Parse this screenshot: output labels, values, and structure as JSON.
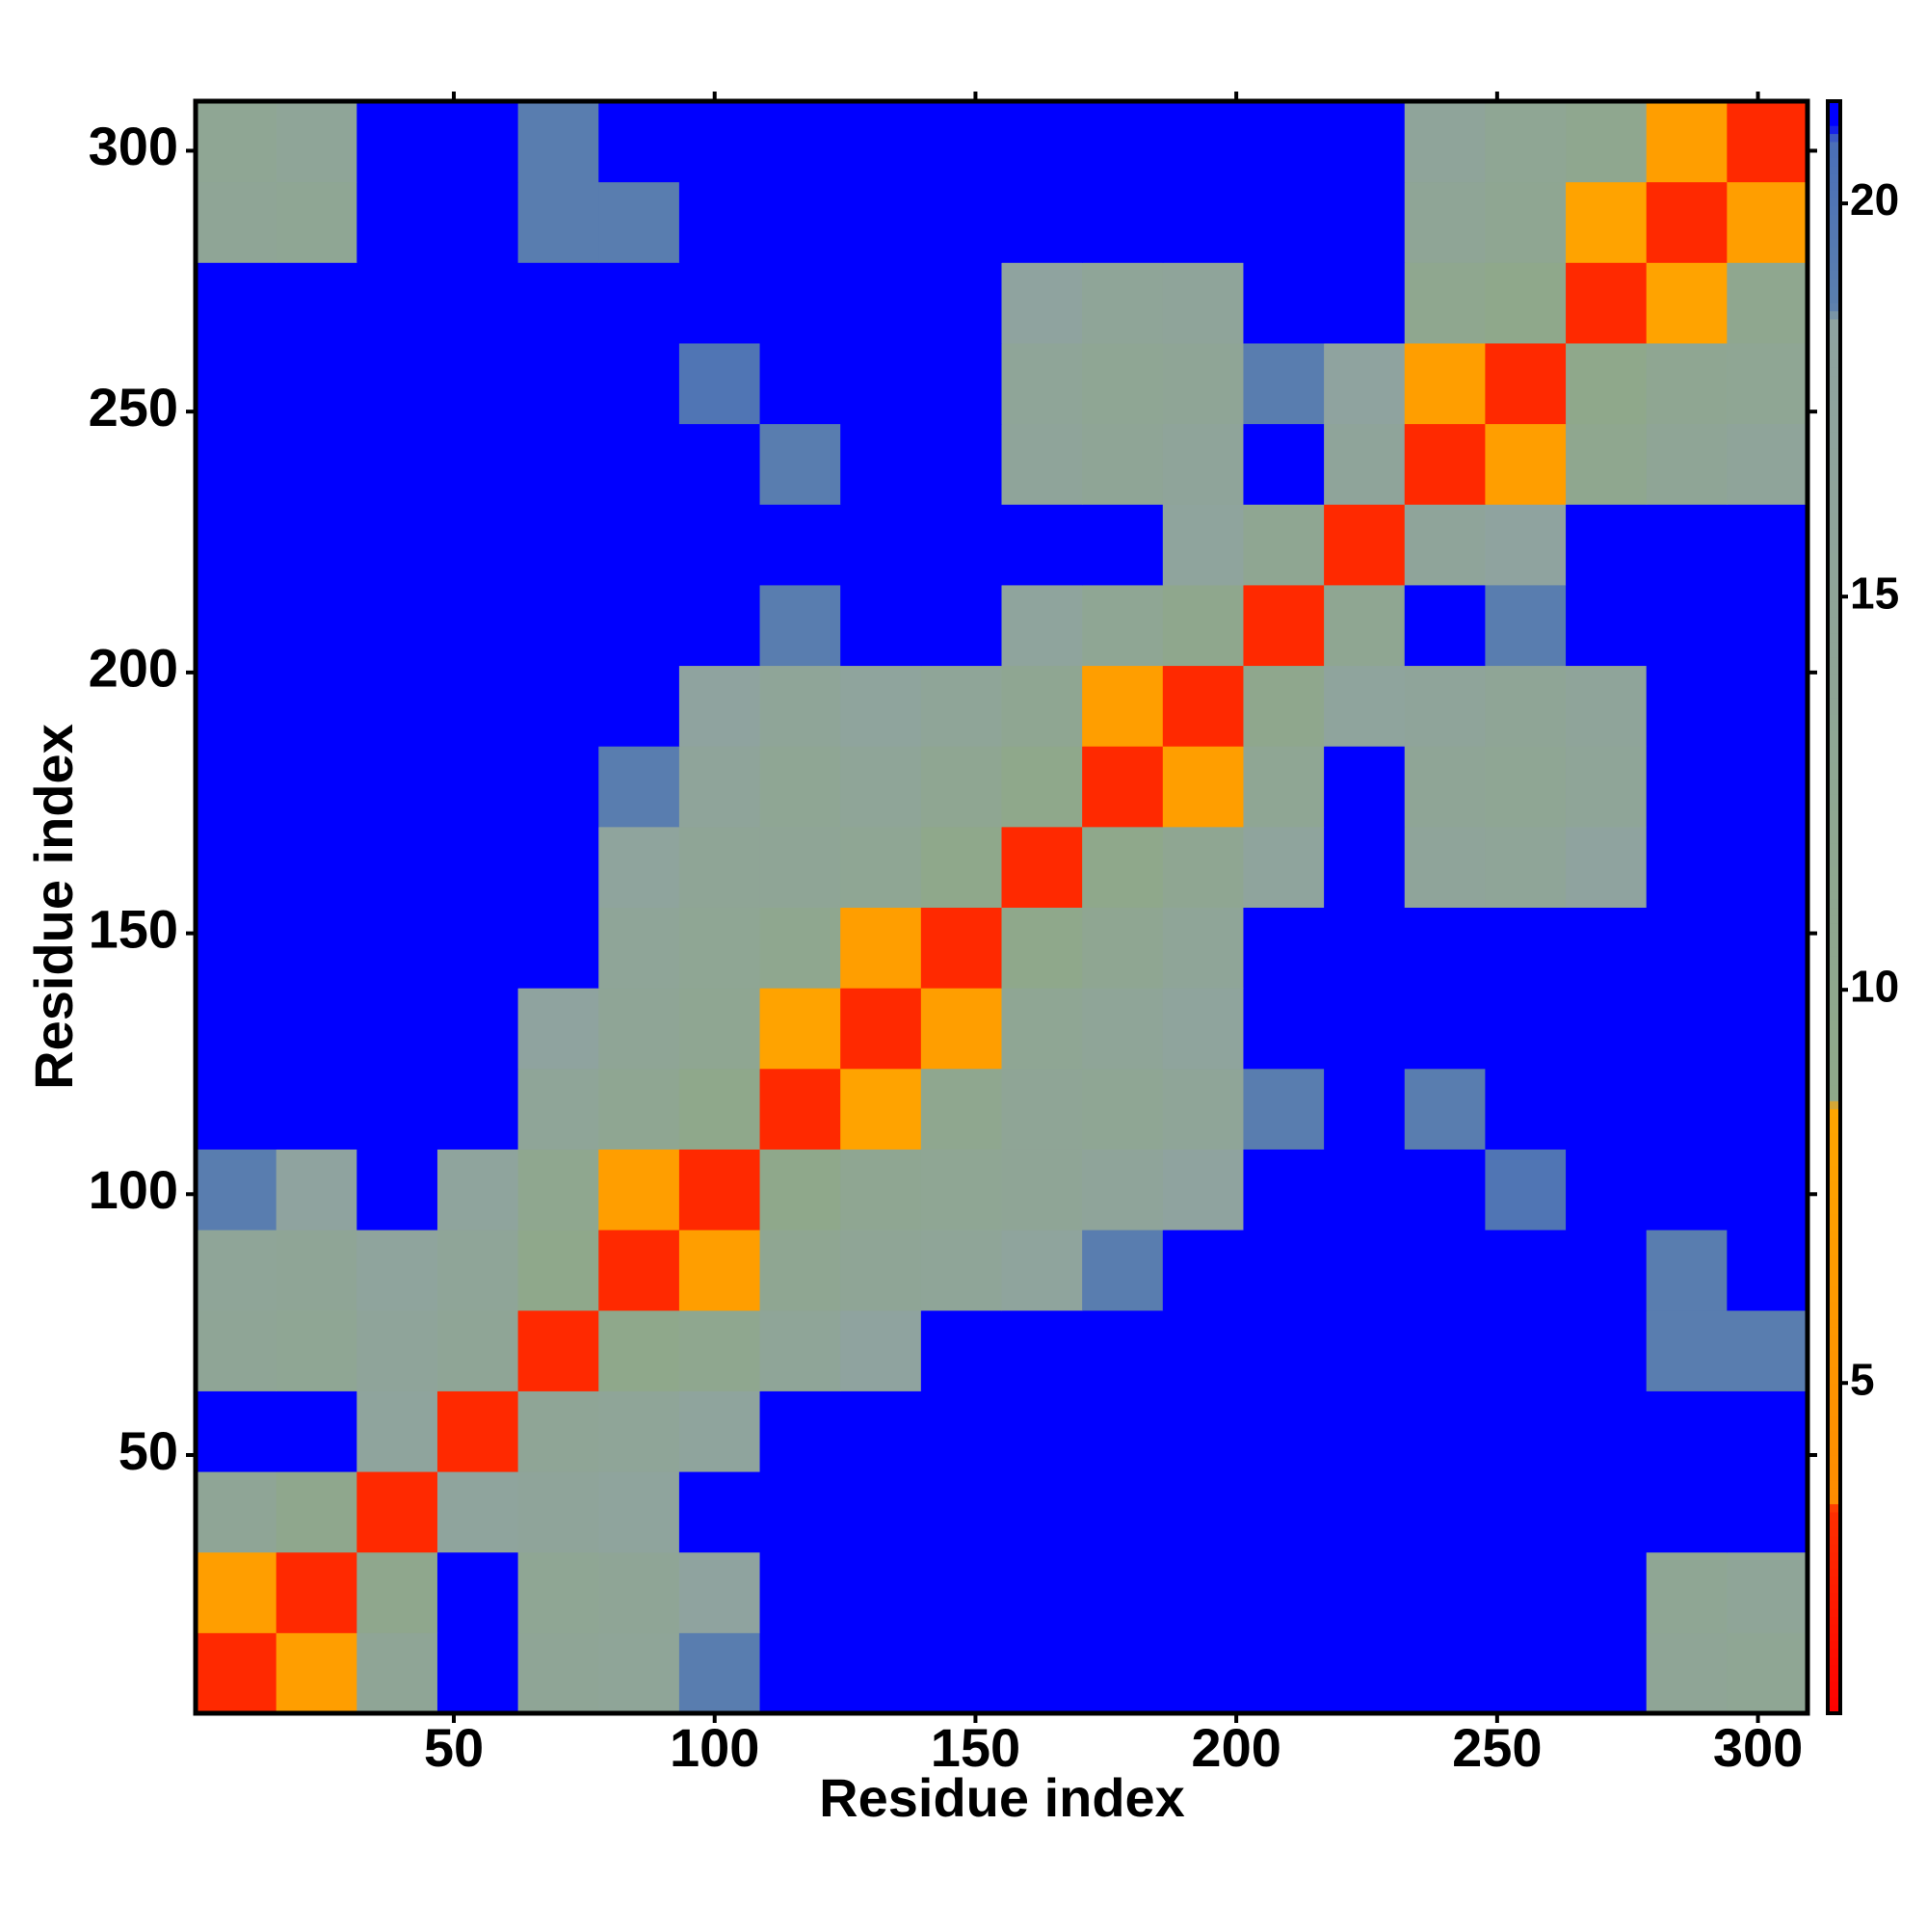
{
  "chart_data": {
    "type": "heatmap",
    "x_label": "Residue index",
    "y_label": "Residue index",
    "x": [
      8.2,
      23.7,
      39.1,
      54.6,
      70.0,
      85.5,
      100.9,
      116.4,
      131.8,
      147.3,
      162.7,
      178.2,
      193.6,
      209.1,
      224.5,
      240.0,
      255.4,
      270.9,
      286.3,
      301.8
    ],
    "y": [
      8.2,
      23.7,
      39.1,
      54.6,
      70.0,
      85.5,
      100.9,
      116.4,
      131.8,
      147.3,
      162.7,
      178.2,
      193.6,
      209.1,
      224.5,
      240.0,
      255.4,
      270.9,
      286.3,
      301.8
    ],
    "values": [
      [
        3,
        7,
        14,
        21,
        14,
        15,
        19,
        21,
        21,
        21,
        21,
        21,
        21,
        21,
        21,
        21,
        21,
        21,
        14,
        13
      ],
      [
        7,
        3,
        10,
        21,
        13,
        14,
        18,
        21,
        21,
        21,
        21,
        21,
        21,
        21,
        21,
        21,
        21,
        21,
        13,
        15
      ],
      [
        14,
        10,
        3,
        17,
        16,
        17,
        21,
        21,
        21,
        21,
        21,
        21,
        21,
        21,
        21,
        21,
        21,
        21,
        21,
        21
      ],
      [
        21,
        21,
        17,
        3,
        14,
        15,
        17,
        21,
        21,
        21,
        21,
        21,
        21,
        21,
        21,
        21,
        21,
        21,
        21,
        21
      ],
      [
        14,
        13,
        16,
        14,
        3,
        9,
        11,
        15,
        18,
        21,
        21,
        21,
        21,
        21,
        21,
        21,
        21,
        21,
        19,
        19
      ],
      [
        15,
        14,
        17,
        15,
        9,
        3,
        7,
        12,
        14,
        15,
        17,
        19,
        21,
        21,
        21,
        21,
        21,
        21,
        19,
        21
      ],
      [
        19,
        18,
        21,
        17,
        11,
        7,
        3,
        9,
        12,
        13,
        14,
        16,
        18,
        21,
        21,
        21,
        20,
        21,
        21,
        21
      ],
      [
        21,
        21,
        21,
        21,
        15,
        12,
        9,
        3,
        8,
        11,
        14,
        13,
        15,
        19,
        21,
        19,
        21,
        21,
        21,
        21
      ],
      [
        21,
        21,
        21,
        21,
        18,
        14,
        12,
        8,
        3,
        7,
        13,
        15,
        17,
        21,
        21,
        21,
        21,
        21,
        21,
        21
      ],
      [
        21,
        21,
        21,
        21,
        21,
        15,
        13,
        11,
        7,
        3,
        9,
        12,
        15,
        21,
        21,
        21,
        21,
        21,
        21,
        21
      ],
      [
        21,
        21,
        21,
        21,
        21,
        17,
        14,
        14,
        13,
        9,
        3,
        9,
        12,
        17,
        21,
        16,
        15,
        18,
        21,
        21
      ],
      [
        21,
        21,
        21,
        21,
        21,
        19,
        16,
        13,
        15,
        12,
        9,
        3,
        7,
        13,
        21,
        14,
        13,
        15,
        21,
        21
      ],
      [
        21,
        21,
        21,
        21,
        21,
        21,
        18,
        15,
        17,
        15,
        12,
        7,
        3,
        10,
        17,
        16,
        14,
        16,
        21,
        21
      ],
      [
        21,
        21,
        21,
        21,
        21,
        21,
        21,
        19,
        21,
        21,
        17,
        13,
        10,
        3,
        12,
        21,
        19,
        21,
        21,
        21
      ],
      [
        21,
        21,
        21,
        21,
        21,
        21,
        21,
        21,
        21,
        21,
        21,
        21,
        17,
        12,
        3,
        16,
        18,
        21,
        21,
        21
      ],
      [
        21,
        21,
        21,
        21,
        21,
        21,
        21,
        19,
        21,
        21,
        16,
        14,
        16,
        21,
        16,
        3,
        7,
        11,
        14,
        16
      ],
      [
        21,
        21,
        21,
        21,
        21,
        21,
        20,
        21,
        21,
        21,
        15,
        13,
        14,
        19,
        18,
        7,
        3,
        9,
        12,
        13
      ],
      [
        21,
        21,
        21,
        21,
        21,
        21,
        21,
        21,
        21,
        21,
        18,
        15,
        16,
        21,
        21,
        11,
        9,
        3,
        8,
        11
      ],
      [
        14,
        13,
        21,
        21,
        19,
        19,
        21,
        21,
        21,
        21,
        21,
        21,
        21,
        21,
        21,
        14,
        12,
        8,
        3,
        7
      ],
      [
        13,
        15,
        21,
        21,
        19,
        21,
        21,
        21,
        21,
        21,
        21,
        21,
        21,
        21,
        21,
        16,
        13,
        11,
        7,
        3
      ]
    ],
    "xlim": [
      0.5,
      309.5
    ],
    "ylim": [
      0.5,
      309.5
    ],
    "xticks": [
      50,
      100,
      150,
      200,
      250,
      300
    ],
    "yticks": [
      50,
      100,
      150,
      200,
      250,
      300
    ],
    "clim": [
      0.8,
      21.3
    ],
    "cticks": [
      5,
      10,
      15,
      20
    ],
    "colorscale": [
      [
        0.8,
        "#ff0000"
      ],
      [
        3.4,
        "#ff3000"
      ],
      [
        3.5,
        "#ff8c00"
      ],
      [
        8.5,
        "#ffa500"
      ],
      [
        8.6,
        "#8fa88a"
      ],
      [
        18.5,
        "#8fa3a0"
      ],
      [
        18.7,
        "#5b7fae"
      ],
      [
        20.8,
        "#4a6fb8"
      ],
      [
        21.0,
        "#0000ff"
      ],
      [
        21.3,
        "#0000ff"
      ]
    ]
  }
}
